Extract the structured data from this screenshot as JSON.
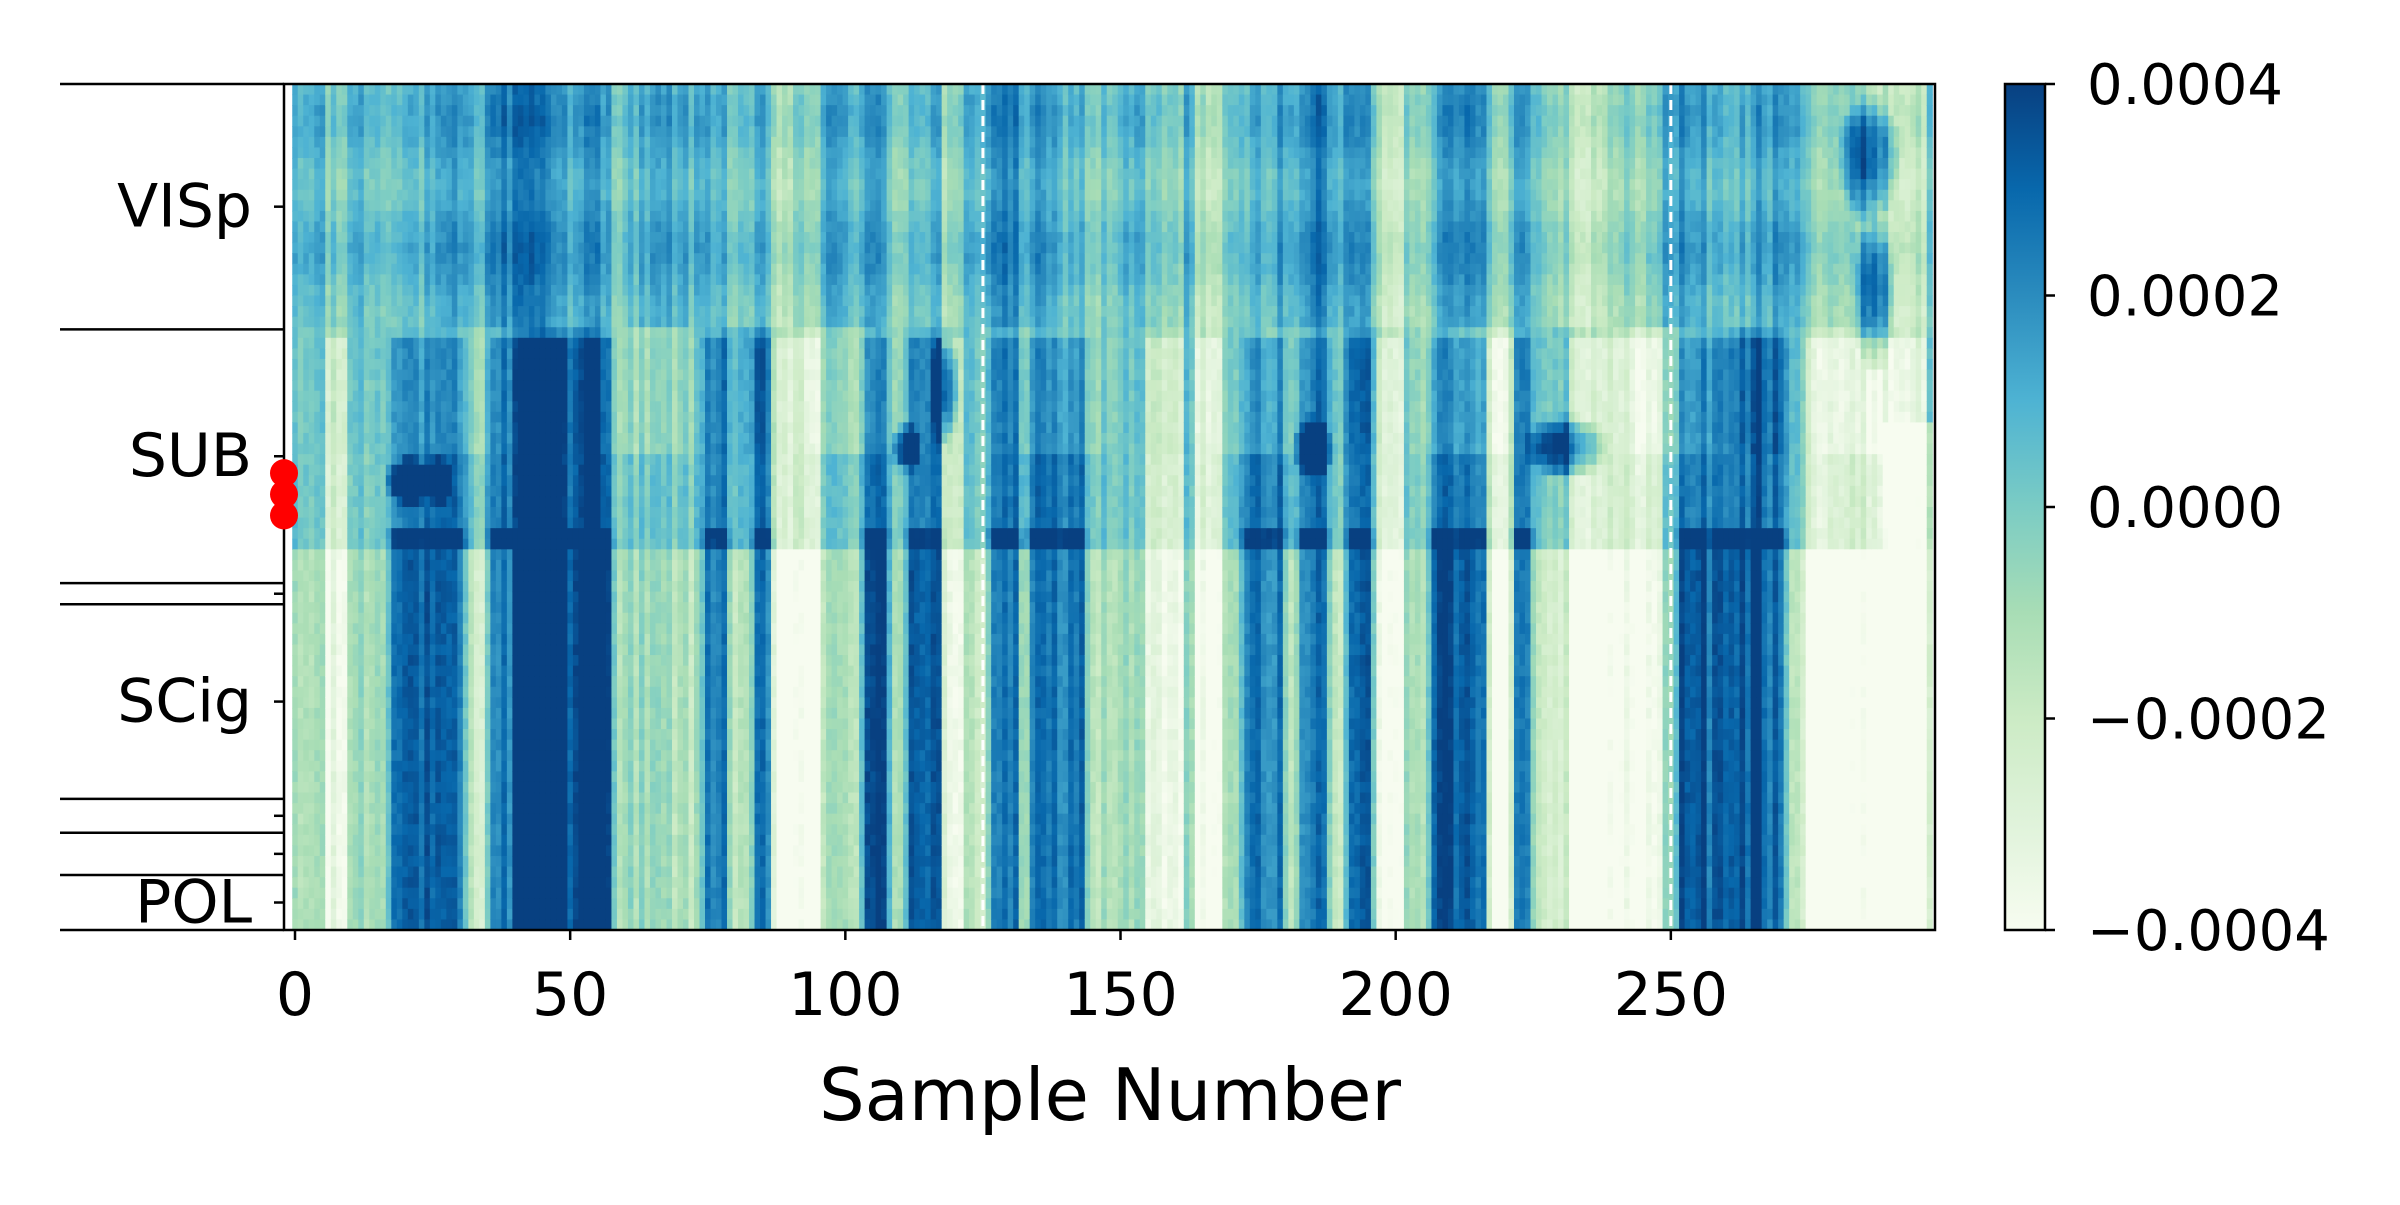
{
  "chart_data": {
    "type": "heatmap",
    "title": "",
    "xlabel": "Sample Number",
    "ylabel": "",
    "x_range": [
      -2,
      298
    ],
    "x_ticks": [
      0,
      50,
      100,
      150,
      200,
      250
    ],
    "x_tick_labels": [
      "0",
      "50",
      "100",
      "150",
      "200",
      "250"
    ],
    "vertical_markers": [
      125,
      250
    ],
    "regions": [
      {
        "label": "VISp",
        "depth_span": [
          0.0,
          0.29
        ]
      },
      {
        "label": "SUB",
        "depth_span": [
          0.29,
          0.59
        ]
      },
      {
        "label": "",
        "depth_span": [
          0.59,
          0.615
        ]
      },
      {
        "label": "SCig",
        "depth_span": [
          0.615,
          0.845
        ]
      },
      {
        "label": "",
        "depth_span": [
          0.845,
          0.885
        ]
      },
      {
        "label": "",
        "depth_span": [
          0.885,
          0.935
        ]
      },
      {
        "label": "POL",
        "depth_span": [
          0.935,
          1.0
        ]
      }
    ],
    "highlighted_channels_depth": [
      0.46,
      0.485,
      0.51
    ],
    "colorbar": {
      "colormap": "GnBu",
      "range": [
        -0.0004,
        0.0004
      ],
      "ticks": [
        0.0004,
        0.0002,
        0.0,
        -0.0002,
        -0.0004
      ],
      "tick_labels": [
        "0.0004",
        "0.0002",
        "0.0000",
        "−0.0002",
        "−0.0004"
      ]
    },
    "colors": {
      "colormap_stops": [
        "#f7fcf0",
        "#e0f3db",
        "#ccebc5",
        "#a8ddb5",
        "#7bccc4",
        "#4eb3d3",
        "#2b8cbe",
        "#0868ac",
        "#084081"
      ],
      "marker_color": "#ff0000",
      "divider_color": "#ffffff"
    }
  }
}
